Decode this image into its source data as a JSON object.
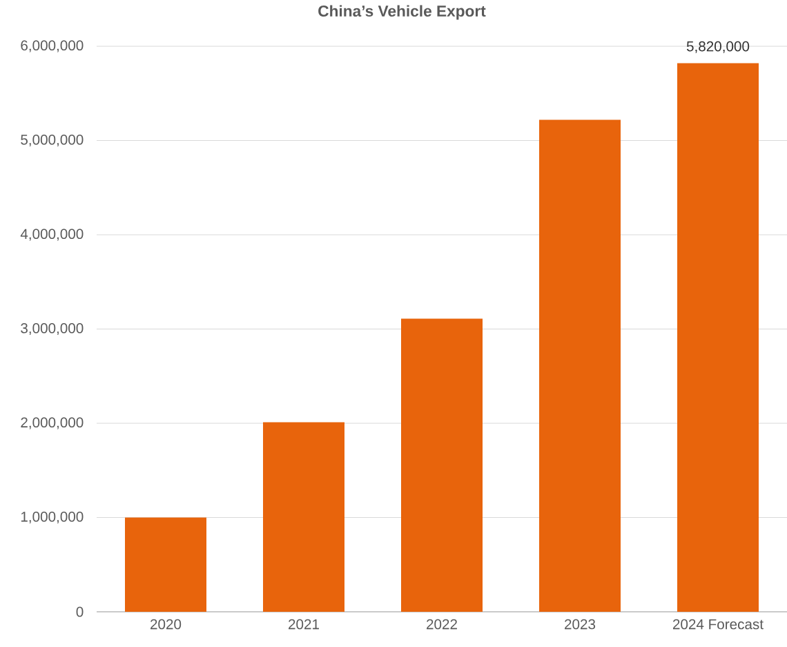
{
  "chart_data": {
    "type": "bar",
    "title": "China’s Vehicle Export",
    "categories": [
      "2020",
      "2021",
      "2022",
      "2023",
      "2024 Forecast"
    ],
    "values": [
      1000000,
      2010000,
      3110000,
      5220000,
      5820000
    ],
    "value_labels": [
      null,
      null,
      null,
      null,
      "5,820,000"
    ],
    "color": "#e8640c",
    "ylim": [
      0,
      6000000
    ],
    "yticks": [
      {
        "value": 0,
        "label": "0"
      },
      {
        "value": 1000000,
        "label": "1,000,000"
      },
      {
        "value": 2000000,
        "label": "2,000,000"
      },
      {
        "value": 3000000,
        "label": "3,000,000"
      },
      {
        "value": 4000000,
        "label": "4,000,000"
      },
      {
        "value": 5000000,
        "label": "5,000,000"
      },
      {
        "value": 6000000,
        "label": "6,000,000"
      }
    ],
    "grid": "y"
  }
}
